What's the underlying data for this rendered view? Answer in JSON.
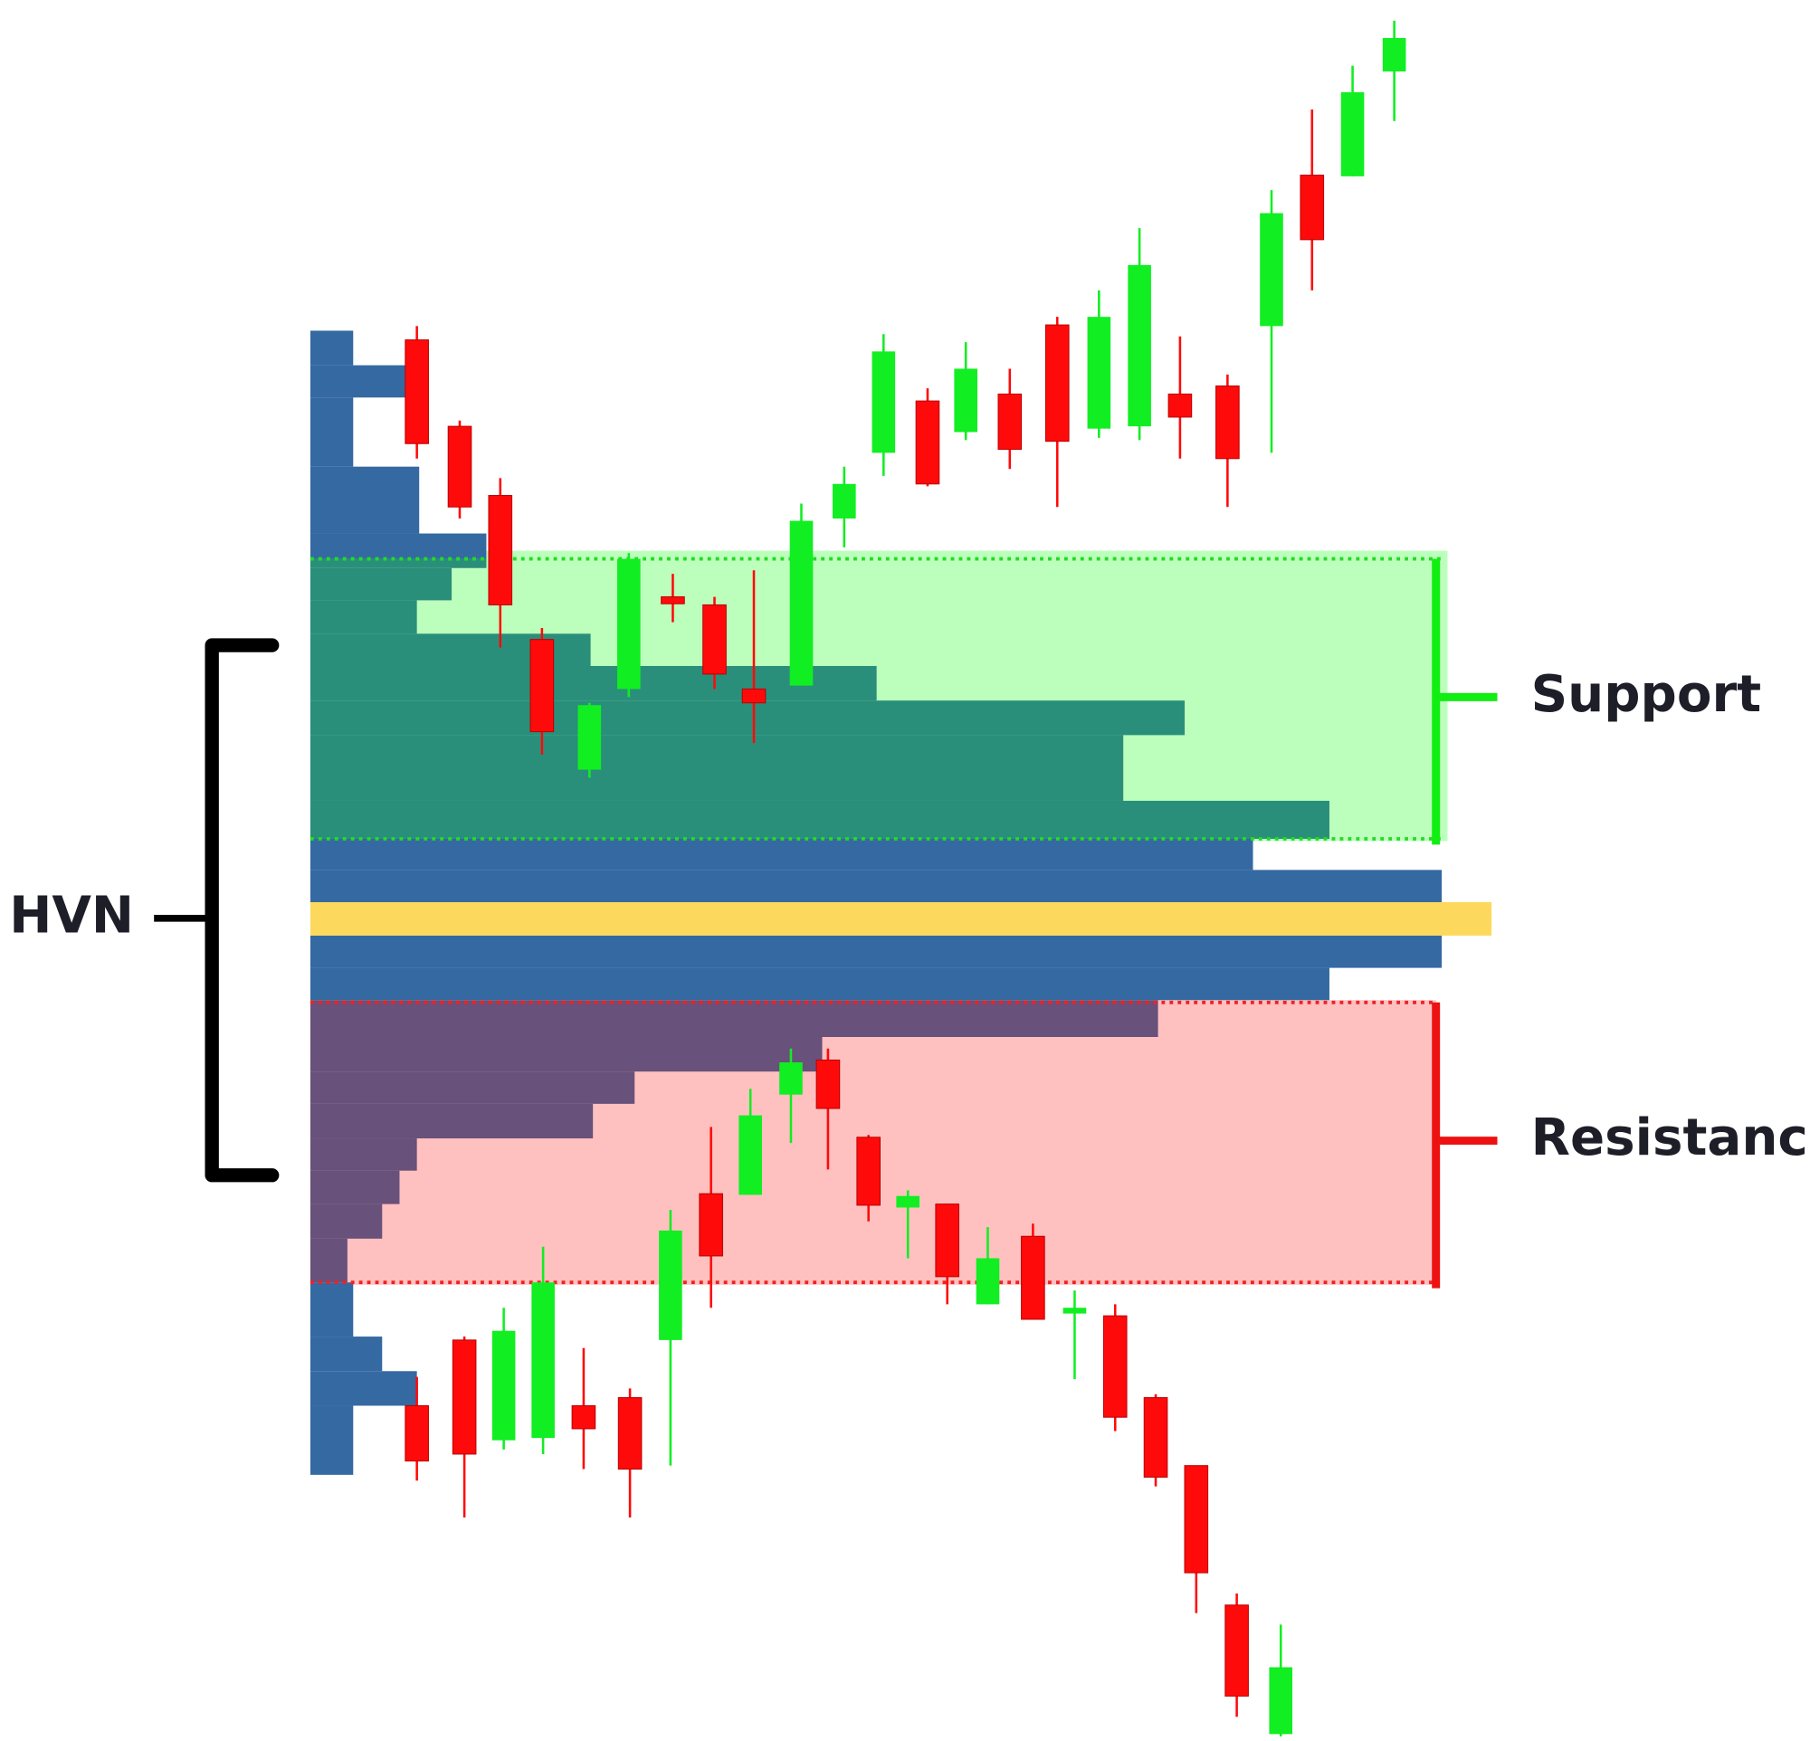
{
  "labels": {
    "hvn": "HVN",
    "support": "Support",
    "resistance": "Resistance"
  }
}
